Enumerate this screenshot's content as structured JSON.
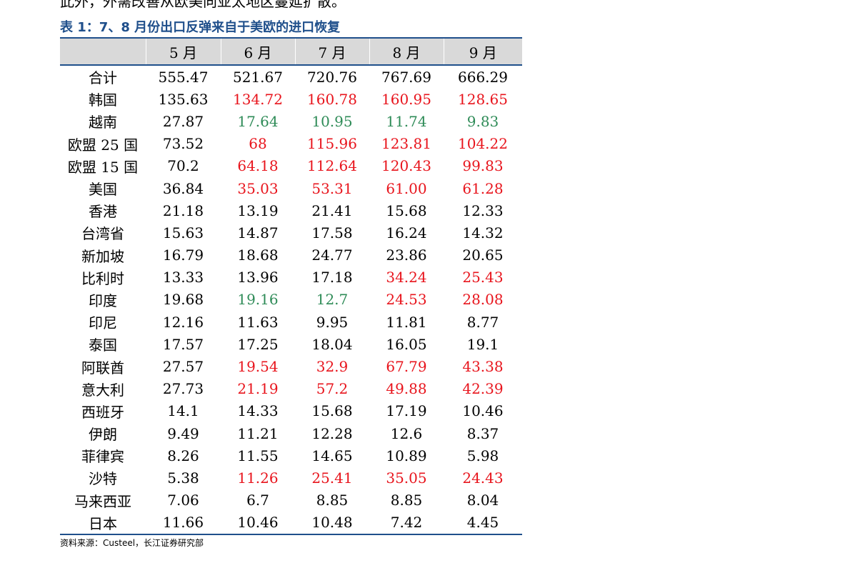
{
  "top_fragment": "此外，外需改善从欧美向亚太地区蔓延扩散。",
  "title": "表 1：7、8 月份出口反弹来自于美欧的进口恢复",
  "colors": {
    "accent": "#1f4f8b",
    "header_bg": "#d9d9d9",
    "up": "#e8141c",
    "down": "#2e8b57"
  },
  "table": {
    "headers": [
      "",
      "5 月",
      "6 月",
      "7 月",
      "8 月",
      "9 月"
    ],
    "rows": [
      {
        "name": "合计",
        "cells": [
          {
            "v": "555.47",
            "c": ""
          },
          {
            "v": "521.67",
            "c": ""
          },
          {
            "v": "720.76",
            "c": ""
          },
          {
            "v": "767.69",
            "c": ""
          },
          {
            "v": "666.29",
            "c": ""
          }
        ]
      },
      {
        "name": "韩国",
        "cells": [
          {
            "v": "135.63",
            "c": ""
          },
          {
            "v": "134.72",
            "c": "up"
          },
          {
            "v": "160.78",
            "c": "up"
          },
          {
            "v": "160.95",
            "c": "up"
          },
          {
            "v": "128.65",
            "c": "up"
          }
        ]
      },
      {
        "name": "越南",
        "cells": [
          {
            "v": "27.87",
            "c": ""
          },
          {
            "v": "17.64",
            "c": "down"
          },
          {
            "v": "10.95",
            "c": "down"
          },
          {
            "v": "11.74",
            "c": "down"
          },
          {
            "v": "9.83",
            "c": "down"
          }
        ]
      },
      {
        "name": "欧盟 25 国",
        "cells": [
          {
            "v": "73.52",
            "c": ""
          },
          {
            "v": "68",
            "c": "up"
          },
          {
            "v": "115.96",
            "c": "up"
          },
          {
            "v": "123.81",
            "c": "up"
          },
          {
            "v": "104.22",
            "c": "up"
          }
        ]
      },
      {
        "name": "欧盟 15 国",
        "cells": [
          {
            "v": "70.2",
            "c": ""
          },
          {
            "v": "64.18",
            "c": "up"
          },
          {
            "v": "112.64",
            "c": "up"
          },
          {
            "v": "120.43",
            "c": "up"
          },
          {
            "v": "99.83",
            "c": "up"
          }
        ]
      },
      {
        "name": "美国",
        "cells": [
          {
            "v": "36.84",
            "c": ""
          },
          {
            "v": "35.03",
            "c": "up"
          },
          {
            "v": "53.31",
            "c": "up"
          },
          {
            "v": "61.00",
            "c": "up"
          },
          {
            "v": "61.28",
            "c": "up"
          }
        ]
      },
      {
        "name": "香港",
        "cells": [
          {
            "v": "21.18",
            "c": ""
          },
          {
            "v": "13.19",
            "c": ""
          },
          {
            "v": "21.41",
            "c": ""
          },
          {
            "v": "15.68",
            "c": ""
          },
          {
            "v": "12.33",
            "c": ""
          }
        ]
      },
      {
        "name": "台湾省",
        "cells": [
          {
            "v": "15.63",
            "c": ""
          },
          {
            "v": "14.87",
            "c": ""
          },
          {
            "v": "17.58",
            "c": ""
          },
          {
            "v": "16.24",
            "c": ""
          },
          {
            "v": "14.32",
            "c": ""
          }
        ]
      },
      {
        "name": "新加坡",
        "cells": [
          {
            "v": "16.79",
            "c": ""
          },
          {
            "v": "18.68",
            "c": ""
          },
          {
            "v": "24.77",
            "c": ""
          },
          {
            "v": "23.86",
            "c": ""
          },
          {
            "v": "20.65",
            "c": ""
          }
        ]
      },
      {
        "name": "比利时",
        "cells": [
          {
            "v": "13.33",
            "c": ""
          },
          {
            "v": "13.96",
            "c": ""
          },
          {
            "v": "17.18",
            "c": ""
          },
          {
            "v": "34.24",
            "c": "up"
          },
          {
            "v": "25.43",
            "c": "up"
          }
        ]
      },
      {
        "name": "印度",
        "cells": [
          {
            "v": "19.68",
            "c": ""
          },
          {
            "v": "19.16",
            "c": "down"
          },
          {
            "v": "12.7",
            "c": "down"
          },
          {
            "v": "24.53",
            "c": "up"
          },
          {
            "v": "28.08",
            "c": "up"
          }
        ]
      },
      {
        "name": "印尼",
        "cells": [
          {
            "v": "12.16",
            "c": ""
          },
          {
            "v": "11.63",
            "c": ""
          },
          {
            "v": "9.95",
            "c": ""
          },
          {
            "v": "11.81",
            "c": ""
          },
          {
            "v": "8.77",
            "c": ""
          }
        ]
      },
      {
        "name": "泰国",
        "cells": [
          {
            "v": "17.57",
            "c": ""
          },
          {
            "v": "17.25",
            "c": ""
          },
          {
            "v": "18.04",
            "c": ""
          },
          {
            "v": "16.05",
            "c": ""
          },
          {
            "v": "19.1",
            "c": ""
          }
        ]
      },
      {
        "name": "阿联酋",
        "cells": [
          {
            "v": "27.57",
            "c": ""
          },
          {
            "v": "19.54",
            "c": "up"
          },
          {
            "v": "32.9",
            "c": "up"
          },
          {
            "v": "67.79",
            "c": "up"
          },
          {
            "v": "43.38",
            "c": "up"
          }
        ]
      },
      {
        "name": "意大利",
        "cells": [
          {
            "v": "27.73",
            "c": ""
          },
          {
            "v": "21.19",
            "c": "up"
          },
          {
            "v": "57.2",
            "c": "up"
          },
          {
            "v": "49.88",
            "c": "up"
          },
          {
            "v": "42.39",
            "c": "up"
          }
        ]
      },
      {
        "name": "西班牙",
        "cells": [
          {
            "v": "14.1",
            "c": ""
          },
          {
            "v": "14.33",
            "c": ""
          },
          {
            "v": "15.68",
            "c": ""
          },
          {
            "v": "17.19",
            "c": ""
          },
          {
            "v": "10.46",
            "c": ""
          }
        ]
      },
      {
        "name": "伊朗",
        "cells": [
          {
            "v": "9.49",
            "c": ""
          },
          {
            "v": "11.21",
            "c": ""
          },
          {
            "v": "12.28",
            "c": ""
          },
          {
            "v": "12.6",
            "c": ""
          },
          {
            "v": "8.37",
            "c": ""
          }
        ]
      },
      {
        "name": "菲律宾",
        "cells": [
          {
            "v": "8.26",
            "c": ""
          },
          {
            "v": "11.55",
            "c": ""
          },
          {
            "v": "14.65",
            "c": ""
          },
          {
            "v": "10.89",
            "c": ""
          },
          {
            "v": "5.98",
            "c": ""
          }
        ]
      },
      {
        "name": "沙特",
        "cells": [
          {
            "v": "5.38",
            "c": ""
          },
          {
            "v": "11.26",
            "c": "up"
          },
          {
            "v": "25.41",
            "c": "up"
          },
          {
            "v": "35.05",
            "c": "up"
          },
          {
            "v": "24.43",
            "c": "up"
          }
        ]
      },
      {
        "name": "马来西亚",
        "cells": [
          {
            "v": "7.06",
            "c": ""
          },
          {
            "v": "6.7",
            "c": ""
          },
          {
            "v": "8.85",
            "c": ""
          },
          {
            "v": "8.85",
            "c": ""
          },
          {
            "v": "8.04",
            "c": ""
          }
        ]
      },
      {
        "name": "日本",
        "cells": [
          {
            "v": "11.66",
            "c": ""
          },
          {
            "v": "10.46",
            "c": ""
          },
          {
            "v": "10.48",
            "c": ""
          },
          {
            "v": "7.42",
            "c": ""
          },
          {
            "v": "4.45",
            "c": ""
          }
        ]
      }
    ]
  },
  "source": "资料来源：Custeel，长江证券研究部"
}
